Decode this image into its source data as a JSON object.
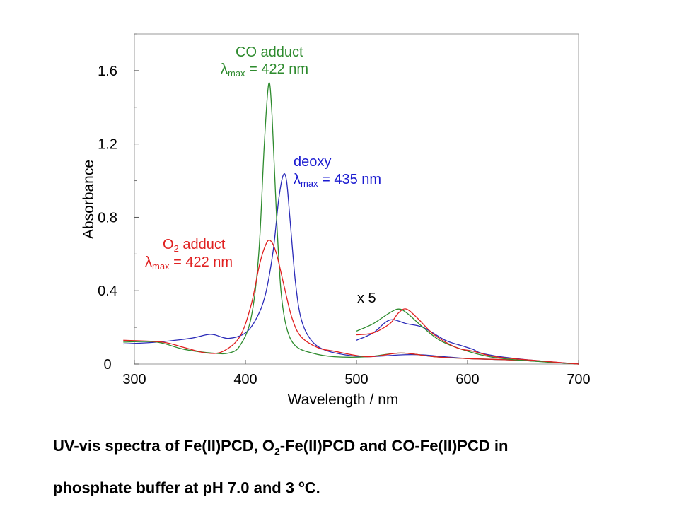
{
  "chart_data": {
    "type": "line",
    "xlabel": "Wavelength / nm",
    "ylabel": "Absorbance",
    "xlim": [
      300,
      700
    ],
    "ylim": [
      0,
      1.8
    ],
    "x_ticks": [
      "300",
      "400",
      "500",
      "600",
      "700"
    ],
    "y_ticks": [
      "0",
      "0.4",
      "0.8",
      "1.2",
      "1.6"
    ],
    "x_tick_values": [
      300,
      400,
      500,
      600,
      700
    ],
    "y_tick_values": [
      0,
      0.4,
      0.8,
      1.2,
      1.6
    ],
    "grid": false,
    "series": [
      {
        "name": "deoxy",
        "color": "#2b2bb8",
        "points": [
          [
            290,
            0.11
          ],
          [
            320,
            0.12
          ],
          [
            350,
            0.14
          ],
          [
            365,
            0.16
          ],
          [
            372,
            0.16
          ],
          [
            385,
            0.14
          ],
          [
            400,
            0.17
          ],
          [
            410,
            0.25
          ],
          [
            418,
            0.38
          ],
          [
            425,
            0.62
          ],
          [
            430,
            0.9
          ],
          [
            434,
            1.03
          ],
          [
            437,
            1.0
          ],
          [
            440,
            0.8
          ],
          [
            445,
            0.45
          ],
          [
            450,
            0.25
          ],
          [
            458,
            0.14
          ],
          [
            470,
            0.08
          ],
          [
            490,
            0.05
          ],
          [
            510,
            0.04
          ],
          [
            540,
            0.05
          ],
          [
            560,
            0.05
          ],
          [
            600,
            0.03
          ],
          [
            650,
            0.02
          ],
          [
            700,
            0.0
          ]
        ]
      },
      {
        "name": "CO adduct",
        "color": "#2e8b2e",
        "points": [
          [
            290,
            0.12
          ],
          [
            320,
            0.12
          ],
          [
            345,
            0.08
          ],
          [
            370,
            0.06
          ],
          [
            385,
            0.06
          ],
          [
            395,
            0.1
          ],
          [
            405,
            0.25
          ],
          [
            412,
            0.6
          ],
          [
            417,
            1.2
          ],
          [
            421,
            1.53
          ],
          [
            424,
            1.35
          ],
          [
            428,
            0.8
          ],
          [
            432,
            0.4
          ],
          [
            437,
            0.2
          ],
          [
            445,
            0.1
          ],
          [
            460,
            0.06
          ],
          [
            480,
            0.04
          ],
          [
            510,
            0.04
          ],
          [
            540,
            0.06
          ],
          [
            570,
            0.04
          ],
          [
            600,
            0.03
          ],
          [
            650,
            0.02
          ],
          [
            700,
            0.0
          ]
        ]
      },
      {
        "name": "O2 adduct",
        "color": "#e02020",
        "points": [
          [
            290,
            0.13
          ],
          [
            325,
            0.12
          ],
          [
            345,
            0.09
          ],
          [
            365,
            0.06
          ],
          [
            380,
            0.07
          ],
          [
            395,
            0.15
          ],
          [
            405,
            0.32
          ],
          [
            413,
            0.55
          ],
          [
            419,
            0.66
          ],
          [
            423,
            0.67
          ],
          [
            428,
            0.6
          ],
          [
            435,
            0.42
          ],
          [
            442,
            0.25
          ],
          [
            450,
            0.15
          ],
          [
            465,
            0.09
          ],
          [
            480,
            0.07
          ],
          [
            510,
            0.04
          ],
          [
            540,
            0.06
          ],
          [
            570,
            0.04
          ],
          [
            600,
            0.03
          ],
          [
            650,
            0.02
          ],
          [
            700,
            0.0
          ]
        ]
      },
      {
        "name": "deoxy x 5",
        "color": "#2b2bb8",
        "points": [
          [
            500,
            0.13
          ],
          [
            515,
            0.17
          ],
          [
            530,
            0.24
          ],
          [
            545,
            0.22
          ],
          [
            560,
            0.2
          ],
          [
            580,
            0.13
          ],
          [
            595,
            0.1
          ],
          [
            605,
            0.08
          ],
          [
            612,
            0.06
          ],
          [
            630,
            0.04
          ],
          [
            660,
            0.02
          ],
          [
            700,
            0.0
          ]
        ]
      },
      {
        "name": "CO adduct x 5",
        "color": "#2e8b2e",
        "points": [
          [
            500,
            0.18
          ],
          [
            515,
            0.22
          ],
          [
            530,
            0.28
          ],
          [
            538,
            0.3
          ],
          [
            545,
            0.28
          ],
          [
            560,
            0.2
          ],
          [
            575,
            0.13
          ],
          [
            595,
            0.08
          ],
          [
            620,
            0.04
          ],
          [
            650,
            0.02
          ],
          [
            700,
            0.0
          ]
        ]
      },
      {
        "name": "O2 adduct x 5",
        "color": "#e02020",
        "points": [
          [
            500,
            0.16
          ],
          [
            515,
            0.17
          ],
          [
            530,
            0.22
          ],
          [
            538,
            0.28
          ],
          [
            545,
            0.3
          ],
          [
            555,
            0.25
          ],
          [
            570,
            0.16
          ],
          [
            590,
            0.09
          ],
          [
            605,
            0.07
          ],
          [
            625,
            0.04
          ],
          [
            660,
            0.02
          ],
          [
            700,
            0.0
          ]
        ]
      }
    ],
    "annotations": [
      {
        "id": "co",
        "color": "#2e8b2e",
        "line1": "CO adduct",
        "lambda": "λ",
        "sub": "max",
        "rest": " = 422 nm"
      },
      {
        "id": "deoxy",
        "color": "#1a1ad0",
        "line1": "deoxy",
        "lambda": "λ",
        "sub": "max",
        "rest": " = 435 nm"
      },
      {
        "id": "o2",
        "color": "#e02020",
        "line1_main": "O",
        "line1_sub": "2",
        "line1_rest": " adduct",
        "lambda": "λ",
        "sub": "max",
        "rest": " = 422 nm"
      },
      {
        "id": "x5",
        "color": "#000000",
        "text": "x 5"
      }
    ]
  },
  "caption": {
    "part1": "UV-vis spectra of Fe(II)PCD, O",
    "sub1": "2",
    "part2": "-Fe(II)PCD and CO-Fe(II)PCD in",
    "part3": "phosphate buffer at pH 7.0 and 3 ",
    "sup1": "o",
    "part4": "C."
  }
}
